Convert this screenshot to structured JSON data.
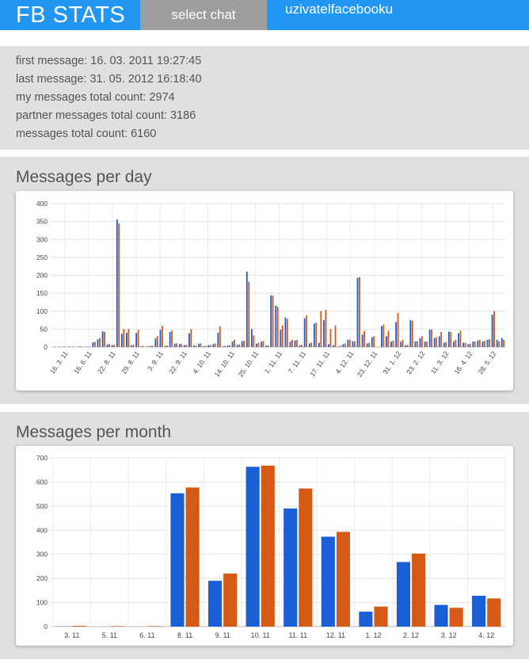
{
  "header": {
    "brand": "FB STATS",
    "select_chat_label": "select chat",
    "username": "uzivatelfacebooku"
  },
  "stats": {
    "first_message": "first message: 16. 03. 2011 19:27:45",
    "last_message": "last message: 31. 05. 2012 16:18:40",
    "my_count": "my messages total count: 2974",
    "partner_count": "partner messages total count: 3186",
    "total_count": "messages total count: 6160"
  },
  "colors": {
    "mine": "#1a5fd6",
    "partner": "#d45a15",
    "header": "#2196f3"
  },
  "daily": {
    "title": "Messages per day"
  },
  "monthly": {
    "title": "Messages per month"
  },
  "chart_data": [
    {
      "type": "bar",
      "title": "Messages per day",
      "ylim": [
        0,
        400
      ],
      "yticks": [
        0,
        50,
        100,
        150,
        200,
        250,
        300,
        350,
        400
      ],
      "xtick_labels": [
        "16. 3. 11",
        "16. 6. 11",
        "22. 8. 11",
        "29. 8. 11",
        "3. 9. 11",
        "22. 9. 11",
        "4. 10. 11",
        "14. 10. 11",
        "25. 10. 11",
        "1. 11. 11",
        "7. 11. 11",
        "17. 11. 11",
        "4. 12. 11",
        "23. 12. 11",
        "31. 1. 12",
        "23. 2. 12",
        "11. 3. 12",
        "16. 4. 12",
        "28. 5. 12"
      ],
      "series": [
        {
          "values": [
            1,
            1,
            1,
            1,
            1,
            1,
            0,
            1,
            13,
            21,
            44,
            7,
            5,
            356,
            37,
            40,
            5,
            39,
            2,
            1,
            3,
            24,
            48,
            3,
            42,
            9,
            8,
            5,
            38,
            4,
            9,
            2,
            5,
            8,
            40,
            2,
            4,
            15,
            6,
            16,
            210,
            50,
            9,
            15,
            4,
            144,
            115,
            48,
            82,
            15,
            18,
            5,
            80,
            10,
            65,
            12,
            75,
            8,
            5,
            1,
            8,
            20,
            16,
            193,
            35,
            10,
            27,
            0,
            58,
            30,
            15,
            70,
            15,
            5,
            75,
            15,
            25,
            15,
            48,
            25,
            30,
            12,
            43,
            15,
            38,
            12,
            8,
            15,
            18,
            15,
            20,
            90,
            20,
            25
          ]
        },
        {
          "values": [
            0,
            0,
            0,
            0,
            0,
            2,
            1,
            0,
            14,
            25,
            42,
            8,
            6,
            345,
            50,
            50,
            6,
            48,
            3,
            2,
            3,
            30,
            59,
            4,
            45,
            10,
            8,
            6,
            50,
            4,
            10,
            3,
            6,
            10,
            58,
            3,
            5,
            20,
            7,
            18,
            182,
            32,
            12,
            17,
            5,
            143,
            112,
            60,
            78,
            20,
            20,
            6,
            88,
            12,
            68,
            100,
            103,
            50,
            60,
            4,
            10,
            20,
            16,
            195,
            45,
            12,
            30,
            0,
            62,
            45,
            18,
            95,
            20,
            6,
            73,
            16,
            30,
            15,
            49,
            27,
            42,
            14,
            42,
            20,
            45,
            12,
            9,
            15,
            20,
            17,
            22,
            100,
            15,
            20
          ]
        }
      ]
    },
    {
      "type": "bar",
      "title": "Messages per month",
      "ylim": [
        0,
        700
      ],
      "yticks": [
        0,
        100,
        200,
        300,
        400,
        500,
        600,
        700
      ],
      "categories": [
        "3. 11",
        "5. 11",
        "6. 11",
        "8. 11",
        "9. 11",
        "10. 11",
        "11. 11",
        "12. 11",
        "1. 12",
        "2. 12",
        "3. 12",
        "4. 12"
      ],
      "series": [
        {
          "values": [
            1,
            0,
            0,
            553,
            190,
            663,
            490,
            373,
            62,
            268,
            90,
            128
          ]
        },
        {
          "values": [
            3,
            2,
            2,
            577,
            220,
            668,
            573,
            393,
            83,
            303,
            78,
            117
          ]
        }
      ]
    }
  ]
}
